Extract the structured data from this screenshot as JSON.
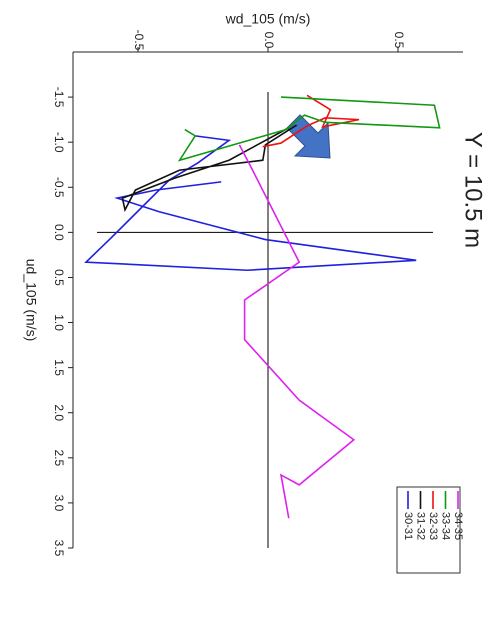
{
  "chart_data": {
    "type": "line",
    "title": "Y = 10.5 m",
    "x_label": "ud_105 (m/s)",
    "y_label": "wd_105 (m/s)",
    "xlim": [
      -2,
      3.5
    ],
    "xticks": [
      -1.5,
      {
        "value": -1,
        "label": "-1.0"
      },
      -0.5,
      {
        "value": 0,
        "label": "0.0"
      },
      0.5,
      {
        "value": 1,
        "label": "1.0"
      },
      1.5,
      {
        "value": 2,
        "label": "2.0"
      },
      2.5,
      {
        "value": 3,
        "label": "3.0"
      },
      3.5
    ],
    "ylim": [
      -0.75,
      0.75
    ],
    "yticks": [
      -0.5,
      {
        "value": 0,
        "label": "0.0"
      },
      0.5
    ],
    "series": [
      {
        "name": "30-31",
        "color": "#2020e0",
        "x": [
          -1.07,
          -1.02,
          -0.77,
          -0.58,
          0.08,
          0.33,
          0.42,
          0.31,
          0.08,
          -0.23,
          -0.38,
          -0.47,
          -0.56
        ],
        "values": [
          -0.28,
          -0.15,
          -0.27,
          -0.38,
          -0.61,
          -0.7,
          -0.08,
          0.57,
          -0.01,
          -0.42,
          -0.58,
          -0.43,
          -0.18
        ]
      },
      {
        "name": "31-32",
        "color": "#111111",
        "x": [
          -1.19,
          -0.97,
          -0.8,
          -0.69,
          -0.47,
          -0.25,
          -0.38,
          -0.6,
          -0.8,
          -1.16
        ],
        "values": [
          0.11,
          -0.01,
          -0.02,
          -0.34,
          -0.51,
          -0.55,
          -0.56,
          -0.36,
          -0.15,
          0.08
        ]
      },
      {
        "name": "32-33",
        "color": "#ee1111",
        "x": [
          -1.52,
          -1.36,
          -1.17,
          -1.25,
          -1.27,
          -1.18,
          -0.99,
          -0.95
        ],
        "values": [
          0.15,
          0.24,
          0.21,
          0.35,
          0.22,
          0.15,
          0.05,
          -0.02
        ]
      },
      {
        "name": "33-34",
        "color": "#119911",
        "x": [
          -1.5,
          -1.41,
          -1.16,
          -1.22,
          -1.3,
          -1.14,
          -0.8,
          -1.07,
          -1.14
        ],
        "values": [
          0.05,
          0.64,
          0.66,
          0.22,
          0.14,
          0.07,
          -0.34,
          -0.28,
          -0.32
        ]
      },
      {
        "name": "34-35",
        "color": "#dd22ee",
        "x": [
          -0.97,
          -0.75,
          0.33,
          0.75,
          1.19,
          1.86,
          2.3,
          2.8,
          2.69,
          3.17
        ],
        "values": [
          -0.11,
          -0.07,
          0.12,
          -0.09,
          -0.09,
          0.12,
          0.33,
          0.12,
          0.05,
          0.08
        ]
      }
    ]
  }
}
